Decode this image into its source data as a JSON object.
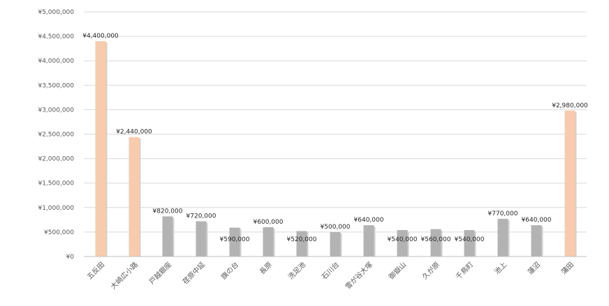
{
  "chart_data": {
    "type": "bar",
    "title": "",
    "xlabel": "",
    "ylabel": "",
    "ylim": [
      0,
      5000000
    ],
    "yticks": [
      0,
      500000,
      1000000,
      1500000,
      2000000,
      2500000,
      3000000,
      3500000,
      4000000,
      4500000,
      5000000
    ],
    "ytick_labels": [
      "¥0",
      "¥500,000",
      "¥1,000,000",
      "¥1,500,000",
      "¥2,000,000",
      "¥2,500,000",
      "¥3,000,000",
      "¥3,500,000",
      "¥4,000,000",
      "¥4,500,000",
      "¥5,000,000"
    ],
    "grid": true,
    "legend": "none",
    "categories": [
      "五反田",
      "大崎広小路",
      "戸越銀座",
      "荏原中延",
      "旗の台",
      "長原",
      "洗足池",
      "石川台",
      "雪が谷大塚",
      "御嶽山",
      "久が原",
      "千鳥町",
      "池上",
      "蓮沼",
      "蒲田"
    ],
    "values": [
      4400000,
      2440000,
      820000,
      720000,
      590000,
      600000,
      520000,
      500000,
      640000,
      540000,
      560000,
      540000,
      770000,
      640000,
      2980000
    ],
    "value_labels": [
      "¥4,400,000",
      "¥2,440,000",
      "¥820,000",
      "¥720,000",
      "¥590,000",
      "¥600,000",
      "¥520,000",
      "¥500,000",
      "¥640,000",
      "¥540,000",
      "¥560,000",
      "¥540,000",
      "¥770,000",
      "¥640,000",
      "¥2,980,000"
    ],
    "highlighted": [
      true,
      true,
      false,
      false,
      false,
      false,
      false,
      false,
      false,
      false,
      false,
      false,
      false,
      false,
      true
    ],
    "colors": {
      "highlight": "#f8cbad",
      "normal": "#b3b3b3",
      "shadow": "#d0d0d0"
    }
  }
}
